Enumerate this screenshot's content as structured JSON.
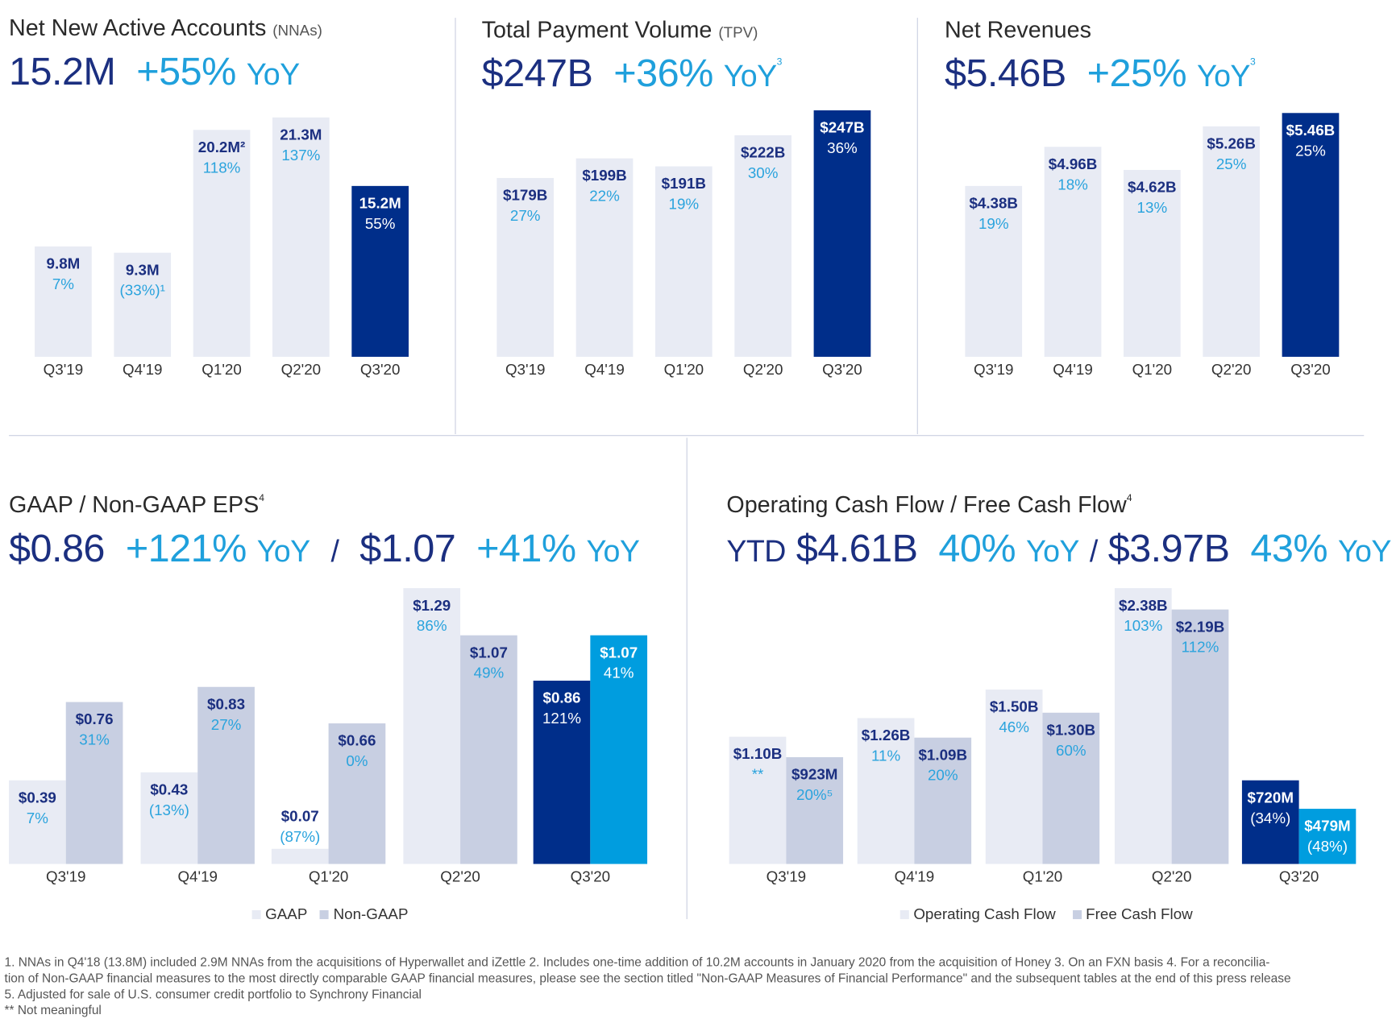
{
  "colors": {
    "navy": "#1b2f80",
    "dark_bar": "#002e8a",
    "light_blue": "#1fa0dc",
    "bright_bar": "#009ddf",
    "light_bar": "#e8ebf4",
    "mid_bar": "#c8cfe2"
  },
  "panels": {
    "nna": {
      "title": "Net New Active Accounts",
      "title_suffix": "(NNAs)",
      "value": "15.2M",
      "yoy": "+55%",
      "yoy_word": "YoY",
      "sup": ""
    },
    "tpv": {
      "title": "Total Payment Volume",
      "title_suffix": "(TPV)",
      "value": "$247B",
      "yoy": "+36%",
      "yoy_word": "YoY",
      "sup": "3"
    },
    "rev": {
      "title": "Net Revenues",
      "value": "$5.46B",
      "yoy": "+25%",
      "yoy_word": "YoY",
      "sup": "3"
    },
    "eps": {
      "title": "GAAP / Non-GAAP EPS",
      "sup": "4",
      "value1": "$0.86",
      "yoy1": "+121%",
      "yoy_word": "YoY",
      "sep": "/",
      "value2": "$1.07",
      "yoy2": "+41%"
    },
    "cf": {
      "title": "Operating Cash Flow / Free Cash Flow",
      "sup": "4",
      "prefix": "YTD",
      "value1": "$4.61B",
      "yoy1": "40%",
      "yoy_word": "YoY",
      "sep": "/",
      "value2": "$3.97B",
      "yoy2": "43%"
    }
  },
  "chart_data": [
    {
      "id": "nna",
      "type": "bar",
      "categories": [
        "Q3'19",
        "Q4'19",
        "Q1'20",
        "Q2'20",
        "Q3'20"
      ],
      "values": [
        9.8,
        9.3,
        20.2,
        21.3,
        15.2
      ],
      "value_labels": [
        "9.8M",
        "9.3M",
        "20.2M²",
        "21.3M",
        "15.2M"
      ],
      "growth_labels": [
        "7%",
        "(33%)¹",
        "118%",
        "137%",
        "55%"
      ],
      "ylim": [
        0,
        21.3
      ]
    },
    {
      "id": "tpv",
      "type": "bar",
      "categories": [
        "Q3'19",
        "Q4'19",
        "Q1'20",
        "Q2'20",
        "Q3'20"
      ],
      "values": [
        179,
        199,
        191,
        222,
        247
      ],
      "value_labels": [
        "$179B",
        "$199B",
        "$191B",
        "$222B",
        "$247B"
      ],
      "growth_labels": [
        "27%",
        "22%",
        "19%",
        "30%",
        "36%"
      ],
      "ylim": [
        0,
        247
      ]
    },
    {
      "id": "rev",
      "type": "bar",
      "categories": [
        "Q3'19",
        "Q4'19",
        "Q1'20",
        "Q2'20",
        "Q3'20"
      ],
      "values": [
        4.38,
        4.96,
        4.62,
        5.26,
        5.46
      ],
      "value_labels": [
        "$4.38B",
        "$4.96B",
        "$4.62B",
        "$5.26B",
        "$5.46B"
      ],
      "growth_labels": [
        "19%",
        "18%",
        "13%",
        "25%",
        "25%"
      ],
      "ylim": [
        1.85,
        5.46
      ]
    },
    {
      "id": "eps",
      "type": "bar",
      "categories": [
        "Q3'19",
        "Q4'19",
        "Q1'20",
        "Q2'20",
        "Q3'20"
      ],
      "ylim": [
        0,
        1.3
      ],
      "legend": "bottom",
      "series": [
        {
          "name": "GAAP",
          "values": [
            0.39,
            0.43,
            0.07,
            1.29,
            0.86
          ],
          "value_labels": [
            "$0.39",
            "$0.43",
            "$0.07",
            "$1.29",
            "$0.86"
          ],
          "growth_labels": [
            "7%",
            "(13%)",
            "(87%)",
            "86%",
            "121%"
          ]
        },
        {
          "name": "Non-GAAP",
          "values": [
            0.76,
            0.83,
            0.66,
            1.07,
            1.07
          ],
          "value_labels": [
            "$0.76",
            "$0.83",
            "$0.66",
            "$1.07",
            "$1.07"
          ],
          "growth_labels": [
            "31%",
            "27%",
            "0%",
            "49%",
            "41%"
          ]
        }
      ]
    },
    {
      "id": "cf",
      "type": "bar",
      "categories": [
        "Q3'19",
        "Q4'19",
        "Q1'20",
        "Q2'20",
        "Q3'20"
      ],
      "ylim": [
        0,
        2.4
      ],
      "legend": "bottom",
      "series": [
        {
          "name": "Operating Cash Flow",
          "values": [
            1.1,
            1.26,
            1.5,
            2.38,
            0.72
          ],
          "value_labels": [
            "$1.10B",
            "$1.26B",
            "$1.50B",
            "$2.38B",
            "$720M"
          ],
          "growth_labels": [
            "**",
            "11%",
            "46%",
            "103%",
            "(34%)"
          ]
        },
        {
          "name": "Free Cash Flow",
          "values": [
            0.923,
            1.09,
            1.3,
            2.19,
            0.479
          ],
          "value_labels": [
            "$923M",
            "$1.09B",
            "$1.30B",
            "$2.19B",
            "$479M"
          ],
          "growth_labels": [
            "20%⁵",
            "20%",
            "60%",
            "112%",
            "(48%)"
          ]
        }
      ]
    }
  ],
  "footnotes": [
    "1.  NNAs in Q4'18 (13.8M) included 2.9M NNAs from the acquisitions of Hyperwallet and iZettle     2.  Includes one-time addition of 10.2M accounts in January 2020 from the acquisition of Honey     3.  On an FXN basis     4.  For a reconcilia-",
    "tion of Non-GAAP financial measures to the most directly comparable GAAP financial measures, please see the section titled \"Non-GAAP Measures of Financial Performance\" and the subsequent tables at the end of this press release",
    "5.  Adjusted for sale of U.S. consumer credit portfolio to Synchrony Financial",
    "** Not meaningful"
  ]
}
